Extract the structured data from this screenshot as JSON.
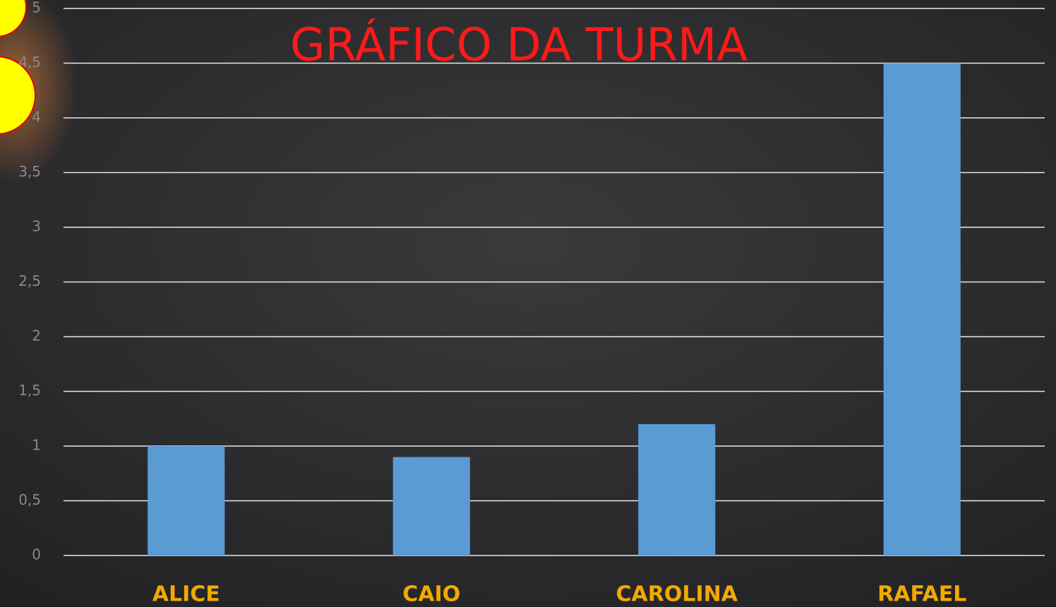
{
  "chart_data": {
    "type": "bar",
    "title": "GRÁFICO DA TURMA",
    "categories": [
      "ALICE",
      "CAIO",
      "CAROLINA",
      "RAFAEL"
    ],
    "values": [
      1,
      0.9,
      1.2,
      4.5
    ],
    "color": "#5b9bd5",
    "ylim": [
      0,
      5
    ],
    "yticks": [
      0,
      {
        "value": 0.5,
        "label": "0,5"
      },
      1,
      {
        "value": 1.5,
        "label": "1,5"
      },
      2,
      {
        "value": 2.5,
        "label": "2,5"
      },
      3,
      {
        "value": 3.5,
        "label": "3,5"
      },
      4,
      {
        "value": 4.5,
        "label": "4,5"
      },
      5
    ],
    "grid": true
  }
}
